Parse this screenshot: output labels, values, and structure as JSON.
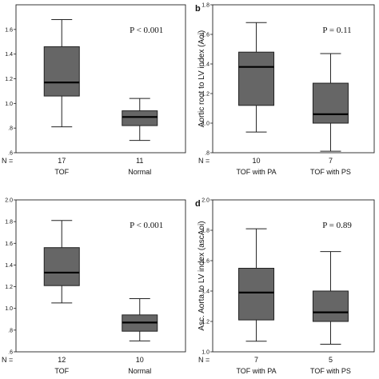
{
  "chart_data": [
    {
      "type": "box",
      "panel_letter": "",
      "ylabel": "",
      "ylim": [
        0.6,
        1.8
      ],
      "yticks": [
        0.6,
        0.8,
        1.0,
        1.2,
        1.4,
        1.6
      ],
      "ytick_labels": [
        ".6",
        ".8",
        "1.0",
        "1.2",
        "1.4",
        "1.6"
      ],
      "p_value": "P < 0.001",
      "n_prefix": "N =",
      "categories": [
        "TOF",
        "Normal"
      ],
      "n": [
        "17",
        "11"
      ],
      "boxes": [
        {
          "min": 0.81,
          "q1": 1.06,
          "median": 1.17,
          "q3": 1.46,
          "max": 1.68
        },
        {
          "min": 0.7,
          "q1": 0.82,
          "median": 0.89,
          "q3": 0.94,
          "max": 1.04
        }
      ],
      "box_color": "#666666"
    },
    {
      "type": "box",
      "panel_letter": "b",
      "ylabel": "Aortic root to LV index (Aoi)",
      "ylim": [
        0.8,
        1.8
      ],
      "yticks": [
        0.8,
        1.0,
        1.2,
        1.4,
        1.6,
        1.8
      ],
      "ytick_labels": [
        ".8",
        "1.0",
        "1.2",
        "1.4",
        "1.6",
        "1.8"
      ],
      "p_value": "P = 0.11",
      "n_prefix": "N =",
      "categories": [
        "TOF with PA",
        "TOF with PS"
      ],
      "n": [
        "10",
        "7"
      ],
      "boxes": [
        {
          "min": 0.94,
          "q1": 1.12,
          "median": 1.38,
          "q3": 1.48,
          "max": 1.68
        },
        {
          "min": 0.81,
          "q1": 1.0,
          "median": 1.06,
          "q3": 1.27,
          "max": 1.47
        }
      ],
      "box_color": "#666666"
    },
    {
      "type": "box",
      "panel_letter": "",
      "ylabel": "",
      "ylim": [
        0.6,
        2.0
      ],
      "yticks": [
        0.6,
        0.8,
        1.0,
        1.2,
        1.4,
        1.6,
        1.8,
        2.0
      ],
      "ytick_labels": [
        ".6",
        ".8",
        "1.0",
        "1.2",
        "1.4",
        "1.6",
        "1.8",
        "2.0"
      ],
      "p_value": "P < 0.001",
      "n_prefix": "N =",
      "categories": [
        "TOF",
        "Normal"
      ],
      "n": [
        "12",
        "10"
      ],
      "boxes": [
        {
          "min": 1.05,
          "q1": 1.21,
          "median": 1.33,
          "q3": 1.56,
          "max": 1.81
        },
        {
          "min": 0.7,
          "q1": 0.79,
          "median": 0.87,
          "q3": 0.94,
          "max": 1.09
        }
      ],
      "box_color": "#666666"
    },
    {
      "type": "box",
      "panel_letter": "d",
      "ylabel": "Asc. Aorta to LV index (ascAoi)",
      "ylim": [
        1.0,
        2.0
      ],
      "yticks": [
        1.0,
        1.2,
        1.4,
        1.6,
        1.8,
        2.0
      ],
      "ytick_labels": [
        "1.0",
        "1.2",
        "1.4",
        "1.6",
        "1.8",
        "2.0"
      ],
      "p_value": "P = 0.89",
      "n_prefix": "N =",
      "categories": [
        "TOF with PA",
        "TOF with PS"
      ],
      "n": [
        "7",
        "5"
      ],
      "boxes": [
        {
          "min": 1.07,
          "q1": 1.21,
          "median": 1.39,
          "q3": 1.55,
          "max": 1.81
        },
        {
          "min": 1.05,
          "q1": 1.2,
          "median": 1.26,
          "q3": 1.4,
          "max": 1.66
        }
      ],
      "box_color": "#666666"
    }
  ]
}
